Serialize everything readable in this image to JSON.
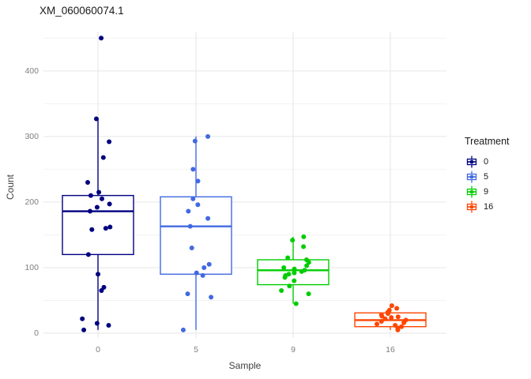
{
  "chart_data": {
    "type": "boxplot",
    "subtype": "boxplot_with_jittered_points",
    "title": "XM_060060074.1",
    "xlabel": "Sample",
    "ylabel": "Count",
    "legend_title": "Treatment",
    "categories": [
      "0",
      "5",
      "9",
      "16"
    ],
    "ylim": [
      0,
      460
    ],
    "yticks": [
      0,
      100,
      200,
      300,
      400
    ],
    "yticks_minor": [
      50,
      150,
      250,
      350,
      450
    ],
    "grid": true,
    "legend_position": "right",
    "colors": {
      "grid_major": "#e6e6e6",
      "grid_minor": "#f2f2f2",
      "tick_text": "#7f7f7f",
      "axis_title_text": "#404040",
      "title_text": "#1a1a1a"
    },
    "series": [
      {
        "name": "0",
        "color": "#000080",
        "box": {
          "whisker_low": 5,
          "q1": 120,
          "median": 186,
          "q3": 210,
          "whisker_high": 327
        },
        "points": [
          450,
          327,
          292,
          268,
          230,
          215,
          210,
          205,
          197,
          192,
          186,
          162,
          160,
          158,
          120,
          90,
          70,
          65,
          22,
          15,
          12,
          5
        ]
      },
      {
        "name": "5",
        "color": "#4169E1",
        "box": {
          "whisker_low": 5,
          "q1": 90,
          "median": 163,
          "q3": 208,
          "whisker_high": 300
        },
        "points": [
          300,
          293,
          250,
          232,
          205,
          196,
          186,
          175,
          163,
          130,
          105,
          100,
          92,
          88,
          60,
          55,
          5
        ]
      },
      {
        "name": "9",
        "color": "#00CD00",
        "box": {
          "whisker_low": 45,
          "q1": 74,
          "median": 96,
          "q3": 112,
          "whisker_high": 147
        },
        "points": [
          147,
          142,
          132,
          115,
          112,
          108,
          103,
          100,
          98,
          96,
          94,
          92,
          90,
          88,
          85,
          80,
          72,
          65,
          60,
          45
        ]
      },
      {
        "name": "16",
        "color": "#FF4500",
        "box": {
          "whisker_low": 5,
          "q1": 10,
          "median": 20,
          "q3": 31,
          "whisker_high": 42
        },
        "points": [
          42,
          38,
          35,
          32,
          30,
          28,
          26,
          25,
          24,
          22,
          20,
          18,
          16,
          14,
          12,
          10,
          8,
          5
        ]
      }
    ]
  }
}
